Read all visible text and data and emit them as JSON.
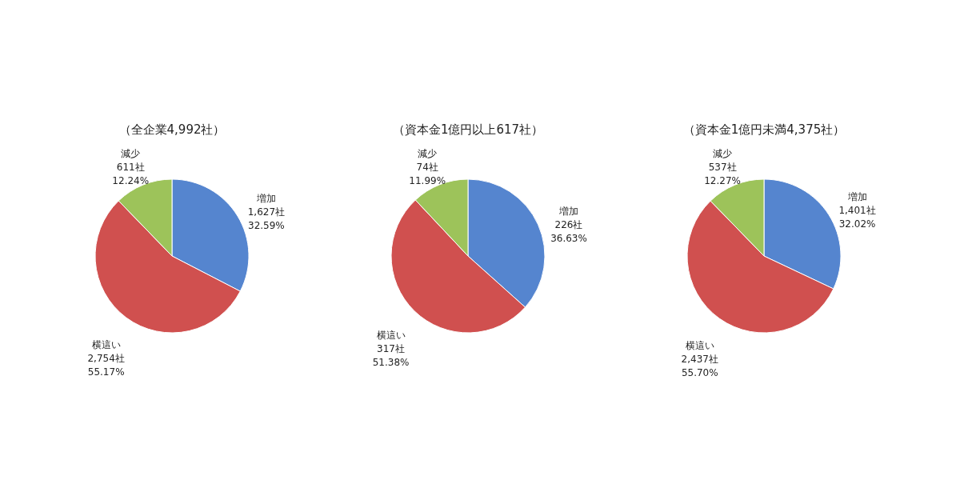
{
  "chart_data": [
    {
      "type": "pie",
      "title": "（全企業4,992社）",
      "categories": [
        "増加",
        "横這い",
        "減少"
      ],
      "values": [
        1627,
        2754,
        611
      ],
      "colors": [
        "#5585cf",
        "#d0504f",
        "#9dc35a"
      ],
      "value_labels": [
        "1,627社 32.59%",
        "2,754社 55.17%",
        "611社 12.24%"
      ]
    },
    {
      "type": "pie",
      "title": "（資本金1億円以上617社）",
      "categories": [
        "増加",
        "横這い",
        "減少"
      ],
      "values": [
        226,
        317,
        74
      ],
      "colors": [
        "#5585cf",
        "#d0504f",
        "#9dc35a"
      ],
      "value_labels": [
        "226社 36.63%",
        "317社 51.38%",
        "74社 11.99%"
      ]
    },
    {
      "type": "pie",
      "title": "（資本金1億円未満4,375社）",
      "categories": [
        "増加",
        "横這い",
        "減少"
      ],
      "values": [
        1401,
        2437,
        537
      ],
      "colors": [
        "#5585cf",
        "#d0504f",
        "#9dc35a"
      ],
      "value_labels": [
        "1,401社 32.02%",
        "2,437社 55.70%",
        "537社 12.27%"
      ]
    }
  ]
}
